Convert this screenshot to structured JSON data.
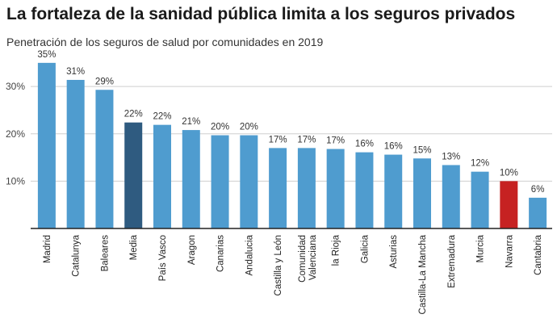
{
  "title": "La fortaleza de la sanidad pública limita a los seguros privados",
  "subtitle": "Penetración de los seguros de salud por comunidades en 2019",
  "colors": {
    "default": "#4f9ccf",
    "highlight_media": "#2f5b80",
    "highlight_navarra": "#c62222",
    "grid": "#cfcfcf",
    "axis": "#222222"
  },
  "chart_data": {
    "type": "bar",
    "title": "La fortaleza de la sanidad pública limita a los seguros privados",
    "subtitle": "Penetración de los seguros de salud por comunidades en 2019",
    "xlabel": "",
    "ylabel": "",
    "ylim": [
      0,
      36
    ],
    "yticks": [
      10,
      20,
      30
    ],
    "ytick_labels": [
      "10%",
      "20%",
      "30%"
    ],
    "grid": true,
    "categories": [
      "Madrid",
      "Catalunya",
      "Baleares",
      "Media",
      "País Vasco",
      "Aragon",
      "Canarias",
      "Andalucia",
      "Castilla y León",
      "Comunidad Valenciana",
      "la Rioja",
      "Galicia",
      "Asturias",
      "Castilla-La Mancha",
      "Extremadura",
      "Murcia",
      "Navarra",
      "Cantabria"
    ],
    "category_lines": [
      [
        "Madrid"
      ],
      [
        "Catalunya"
      ],
      [
        "Baleares"
      ],
      [
        "Media"
      ],
      [
        "País Vasco"
      ],
      [
        "Aragon"
      ],
      [
        "Canarias"
      ],
      [
        "Andalucia"
      ],
      [
        "Castilla y León"
      ],
      [
        "Comunidad",
        "Valenciana"
      ],
      [
        "la Rioja"
      ],
      [
        "Galicia"
      ],
      [
        "Asturias"
      ],
      [
        "Castilla-La Mancha"
      ],
      [
        "Extremadura"
      ],
      [
        "Murcia"
      ],
      [
        "Navarra"
      ],
      [
        "Cantabria"
      ]
    ],
    "values": [
      35,
      31.4,
      29.3,
      22.4,
      21.9,
      20.8,
      19.7,
      19.7,
      17,
      17,
      16.8,
      16.1,
      15.6,
      14.8,
      13.4,
      12,
      10,
      6.5
    ],
    "value_labels": [
      "35%",
      "31%",
      "29%",
      "22%",
      "22%",
      "21%",
      "20%",
      "20%",
      "17%",
      "17%",
      "17%",
      "16%",
      "16%",
      "15%",
      "13%",
      "12%",
      "10%",
      "6%"
    ],
    "highlights": {
      "Media": "highlight_media",
      "Navarra": "highlight_navarra"
    }
  }
}
